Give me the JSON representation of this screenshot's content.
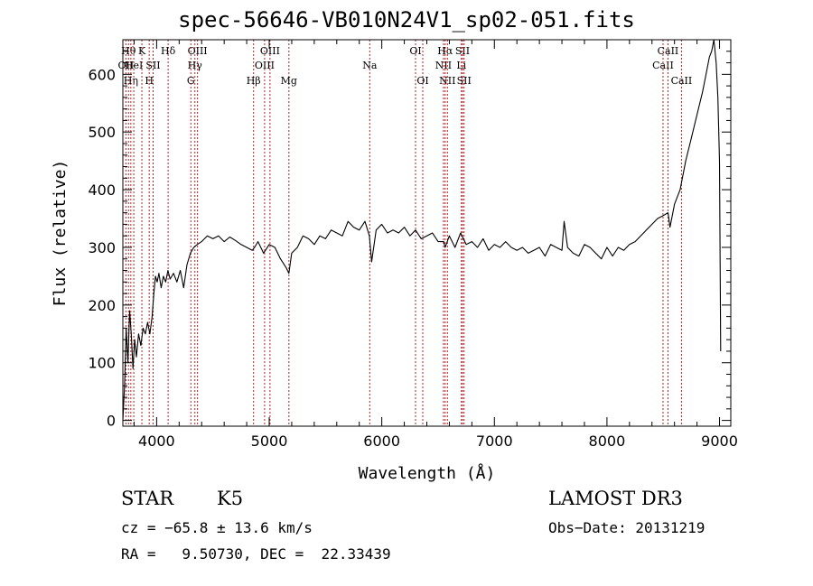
{
  "chart_data": {
    "type": "line",
    "title": "spec-56646-VB010N24V1_sp02-051.fits",
    "xlabel": "Wavelength (Å)",
    "ylabel": "Flux (relative)",
    "xlim": [
      3700,
      9100
    ],
    "ylim": [
      -10,
      660
    ],
    "xticks": [
      4000,
      5000,
      6000,
      7000,
      8000,
      9000
    ],
    "yticks": [
      0,
      100,
      200,
      300,
      400,
      500,
      600
    ],
    "series": [
      {
        "x": [
          3700,
          3715,
          3730,
          3745,
          3760,
          3775,
          3790,
          3805,
          3820,
          3840,
          3860,
          3880,
          3900,
          3920,
          3940,
          3960,
          3975,
          3990,
          4005,
          4020,
          4040,
          4060,
          4080,
          4100,
          4120,
          4150,
          4180,
          4210,
          4240,
          4270,
          4300,
          4330,
          4360,
          4400,
          4450,
          4500,
          4550,
          4600,
          4650,
          4700,
          4750,
          4800,
          4850,
          4870,
          4900,
          4950,
          5000,
          5050,
          5100,
          5150,
          5175,
          5200,
          5250,
          5300,
          5350,
          5400,
          5450,
          5500,
          5550,
          5600,
          5650,
          5700,
          5750,
          5800,
          5850,
          5890,
          5910,
          5950,
          6000,
          6050,
          6100,
          6150,
          6200,
          6250,
          6300,
          6350,
          6400,
          6450,
          6500,
          6550,
          6563,
          6600,
          6650,
          6700,
          6750,
          6800,
          6850,
          6900,
          6950,
          7000,
          7050,
          7100,
          7150,
          7200,
          7250,
          7300,
          7350,
          7400,
          7450,
          7500,
          7550,
          7600,
          7620,
          7650,
          7700,
          7750,
          7800,
          7850,
          7900,
          7950,
          8000,
          8050,
          8100,
          8150,
          8200,
          8250,
          8300,
          8350,
          8400,
          8450,
          8500,
          8542,
          8560,
          8600,
          8650,
          8700,
          8750,
          8800,
          8850,
          8880,
          8910,
          8930,
          8950,
          8970,
          8985,
          9000,
          9010
        ],
        "y": [
          0,
          60,
          160,
          100,
          190,
          150,
          90,
          140,
          110,
          150,
          130,
          160,
          150,
          170,
          150,
          180,
          220,
          250,
          240,
          255,
          230,
          250,
          240,
          260,
          245,
          255,
          240,
          260,
          230,
          270,
          290,
          300,
          305,
          310,
          320,
          315,
          320,
          310,
          318,
          312,
          305,
          300,
          295,
          300,
          310,
          290,
          305,
          300,
          280,
          265,
          255,
          290,
          300,
          320,
          315,
          305,
          320,
          315,
          330,
          325,
          320,
          345,
          335,
          330,
          345,
          320,
          275,
          330,
          340,
          325,
          330,
          325,
          335,
          320,
          330,
          315,
          320,
          325,
          310,
          310,
          300,
          320,
          300,
          325,
          305,
          310,
          300,
          315,
          295,
          305,
          300,
          310,
          300,
          295,
          300,
          290,
          295,
          300,
          285,
          305,
          300,
          295,
          345,
          300,
          290,
          285,
          305,
          300,
          290,
          280,
          300,
          285,
          300,
          295,
          305,
          310,
          320,
          330,
          340,
          350,
          355,
          360,
          335,
          375,
          400,
          450,
          490,
          530,
          570,
          600,
          630,
          640,
          660,
          620,
          560,
          450,
          120
        ]
      }
    ],
    "lines": [
      {
        "w": 3727,
        "label": "OII",
        "row": 1
      },
      {
        "w": 3750,
        "label": "Hθ",
        "row": 0
      },
      {
        "w": 3771,
        "label": "Hη",
        "row": 2
      },
      {
        "w": 3797,
        "label": "HeI",
        "row": 1
      },
      {
        "w": 3869,
        "label": "K",
        "row": 0
      },
      {
        "w": 3934,
        "label": "H",
        "row": 2
      },
      {
        "w": 3969,
        "label": "SII",
        "row": 1
      },
      {
        "w": 4102,
        "label": "Hδ",
        "row": 0
      },
      {
        "w": 4304,
        "label": "G",
        "row": 2
      },
      {
        "w": 4340,
        "label": "Hγ",
        "row": 1
      },
      {
        "w": 4363,
        "label": "OIII",
        "row": 0
      },
      {
        "w": 4861,
        "label": "Hβ",
        "row": 2
      },
      {
        "w": 4959,
        "label": "OIII",
        "row": 1
      },
      {
        "w": 5007,
        "label": "OIII",
        "row": 0
      },
      {
        "w": 5175,
        "label": "Mg",
        "row": 2
      },
      {
        "w": 5893,
        "label": "Na",
        "row": 1
      },
      {
        "w": 6300,
        "label": "OI",
        "row": 0
      },
      {
        "w": 6364,
        "label": "OI",
        "row": 2
      },
      {
        "w": 6548,
        "label": "NII",
        "row": 1
      },
      {
        "w": 6563,
        "label": "Hα",
        "row": 0
      },
      {
        "w": 6583,
        "label": "NII",
        "row": 2
      },
      {
        "w": 6707,
        "label": "Li",
        "row": 1
      },
      {
        "w": 6717,
        "label": "SII",
        "row": 0
      },
      {
        "w": 6731,
        "label": "SII",
        "row": 2
      },
      {
        "w": 8498,
        "label": "CaII",
        "row": 1
      },
      {
        "w": 8542,
        "label": "CaII",
        "row": 0
      },
      {
        "w": 8662,
        "label": "CaII",
        "row": 2
      }
    ],
    "grid": false,
    "line_color": "#000000",
    "marker_color": "#b22222"
  },
  "info": {
    "class": "STAR",
    "subclass": "K5",
    "survey": "LAMOST DR3",
    "cz": "cz = −65.8 ± 13.6 km/s",
    "obs_date": "Obs−Date: 20131219",
    "coords": "RA =   9.50730, DEC =  22.33439"
  }
}
